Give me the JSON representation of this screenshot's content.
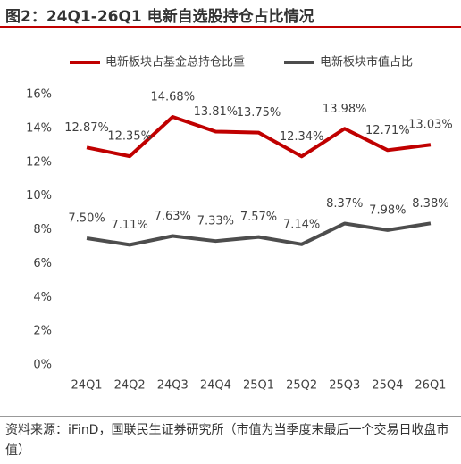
{
  "chart_data": {
    "type": "line",
    "title": "图2：24Q1-26Q1 电新自选股持仓占比情况",
    "source": "资料来源：iFinD，国联民生证券研究所（市值为当季度末最后一个交易日收盘市值）",
    "categories": [
      "24Q1",
      "24Q2",
      "24Q3",
      "24Q4",
      "25Q1",
      "25Q2",
      "25Q3",
      "25Q4",
      "26Q1"
    ],
    "series": [
      {
        "name": "电新板块占基金总持仓比重",
        "color": "#c00000",
        "values": [
          12.87,
          12.35,
          14.68,
          13.81,
          13.75,
          12.34,
          13.98,
          12.71,
          13.03
        ],
        "value_labels": [
          "12.87%",
          "12.35%",
          "14.68%",
          "13.81%",
          "13.75%",
          "12.34%",
          "13.98%",
          "12.71%",
          "13.03%"
        ]
      },
      {
        "name": "电新板块市值占比",
        "color": "#4d4d4d",
        "values": [
          7.5,
          7.11,
          7.63,
          7.33,
          7.57,
          7.14,
          8.37,
          7.98,
          8.38
        ],
        "value_labels": [
          "7.50%",
          "7.11%",
          "7.63%",
          "7.33%",
          "7.57%",
          "7.14%",
          "8.37%",
          "7.98%",
          "8.38%"
        ]
      }
    ],
    "ylim": [
      0,
      16
    ],
    "yticks": [
      {
        "value": 0,
        "label": "0%"
      },
      {
        "value": 2,
        "label": "2%"
      },
      {
        "value": 4,
        "label": "4%"
      },
      {
        "value": 6,
        "label": "6%"
      },
      {
        "value": 8,
        "label": "8%"
      },
      {
        "value": 10,
        "label": "10%"
      },
      {
        "value": 12,
        "label": "12%"
      },
      {
        "value": 14,
        "label": "14%"
      },
      {
        "value": 16,
        "label": "16%"
      }
    ],
    "grid": false,
    "legend": "top"
  }
}
